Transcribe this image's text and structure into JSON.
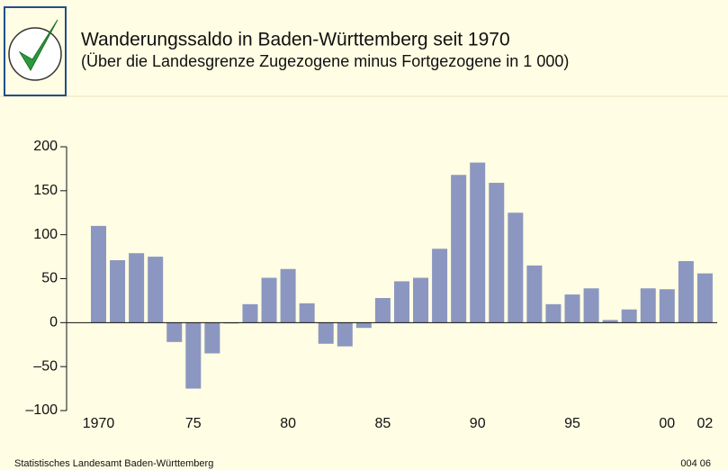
{
  "chart_data": {
    "type": "bar",
    "title": "Wanderungssaldo in Baden-Württemberg seit 1970",
    "subtitle": "(Über die Landesgrenze Zugezogene minus Fortgezogene in 1 000)",
    "source": "Statistisches Landesamt Baden-Württemberg",
    "code": "004 06",
    "categories": [
      "1970",
      null,
      null,
      null,
      null,
      "75",
      null,
      null,
      null,
      null,
      "80",
      null,
      null,
      null,
      null,
      "85",
      null,
      null,
      null,
      null,
      "90",
      null,
      null,
      null,
      null,
      "95",
      null,
      null,
      null,
      null,
      "00",
      null,
      "02"
    ],
    "values": [
      110,
      71,
      79,
      75,
      -22,
      -75,
      -35,
      -1,
      21,
      51,
      61,
      22,
      -24,
      -27,
      -6,
      28,
      47,
      51,
      84,
      168,
      182,
      159,
      125,
      65,
      21,
      32,
      39,
      3,
      15,
      39,
      38,
      70,
      56
    ],
    "color": "#8b97c0",
    "ylim": [
      -100,
      200
    ],
    "yticks": [
      {
        "value": -100,
        "label": "–100"
      },
      {
        "value": -50,
        "label": "–50"
      },
      0,
      50,
      100,
      150,
      200
    ]
  }
}
